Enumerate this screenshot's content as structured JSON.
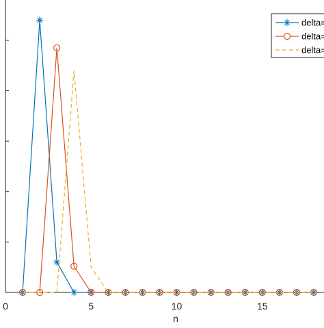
{
  "chart_data": {
    "type": "line",
    "xlabel": "n",
    "ylabel": "",
    "title": "",
    "xlim": [
      0,
      18.6
    ],
    "ylim": [
      0,
      0.58
    ],
    "x_ticks": [
      0,
      5,
      10,
      15
    ],
    "x_tick_labels": [
      "0",
      "5",
      "10",
      "15"
    ],
    "grid": false,
    "legend_placement": "top-right",
    "legend_entries": [
      "delta=",
      "delta=",
      "delta="
    ],
    "series": [
      {
        "name": "delta=",
        "color": "#0072BD",
        "line_style": "solid",
        "marker": "asterisk",
        "x": [
          1,
          2,
          3,
          4,
          5,
          6,
          7,
          8,
          9,
          10,
          11,
          12,
          13,
          14,
          15,
          16,
          17,
          18
        ],
        "y": [
          0,
          0.54,
          0.06,
          0,
          0,
          0,
          0,
          0,
          0,
          0,
          0,
          0,
          0,
          0,
          0,
          0,
          0,
          0
        ]
      },
      {
        "name": "delta=",
        "color": "#D95319",
        "line_style": "solid",
        "marker": "circle",
        "x": [
          1,
          2,
          3,
          4,
          5,
          6,
          7,
          8,
          9,
          10,
          11,
          12,
          13,
          14,
          15,
          16,
          17,
          18
        ],
        "y": [
          0,
          0,
          0.485,
          0.052,
          0,
          0,
          0,
          0,
          0,
          0,
          0,
          0,
          0,
          0,
          0,
          0,
          0,
          0
        ]
      },
      {
        "name": "delta=",
        "color": "#EDB120",
        "line_style": "dashed",
        "marker": "none",
        "x": [
          1,
          2,
          3,
          4,
          5,
          6,
          7,
          8,
          9,
          10,
          11,
          12,
          13,
          14,
          15,
          16,
          17,
          18
        ],
        "y": [
          0,
          0,
          0,
          0.44,
          0.05,
          0,
          0,
          0,
          0,
          0,
          0,
          0,
          0,
          0,
          0,
          0,
          0,
          0
        ]
      }
    ]
  }
}
